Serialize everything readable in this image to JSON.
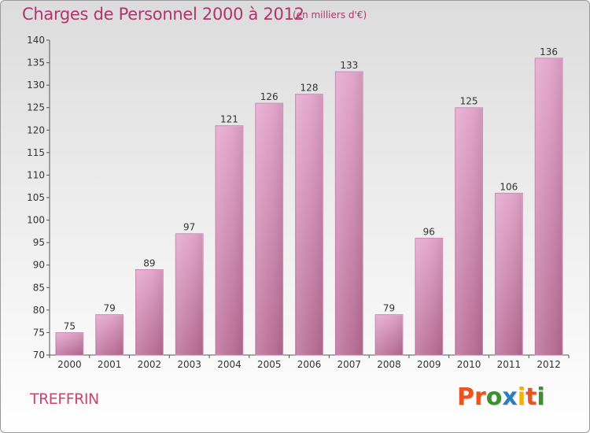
{
  "header": {
    "title": "Charges de Personnel 2000 à 2012",
    "subtitle": "(en milliers d'€)"
  },
  "footer": {
    "commune": "TREFFRIN",
    "brand": "Proxiti"
  },
  "colors": {
    "title": "#b0356a",
    "bar_top": "#e3a4cb",
    "bar_bottom": "#b86c95",
    "brand_letters": [
      "#e8551f",
      "#e8551f",
      "#3f8f2e",
      "#2b7fc0",
      "#f0b400",
      "#e8551f",
      "#3f8f2e"
    ]
  },
  "chart_data": {
    "type": "bar",
    "title": "Charges de Personnel 2000 à 2012",
    "subtitle": "(en milliers d'€)",
    "categories": [
      "2000",
      "2001",
      "2002",
      "2003",
      "2004",
      "2005",
      "2006",
      "2007",
      "2008",
      "2009",
      "2010",
      "2011",
      "2012"
    ],
    "values": [
      75,
      79,
      89,
      97,
      121,
      126,
      128,
      133,
      79,
      96,
      125,
      106,
      136
    ],
    "ylim": [
      70,
      140
    ],
    "yticks": [
      70,
      75,
      80,
      85,
      90,
      95,
      100,
      105,
      110,
      115,
      120,
      125,
      130,
      135,
      140
    ],
    "xlabel": "",
    "ylabel": "",
    "grid": false,
    "data_labels": true
  }
}
